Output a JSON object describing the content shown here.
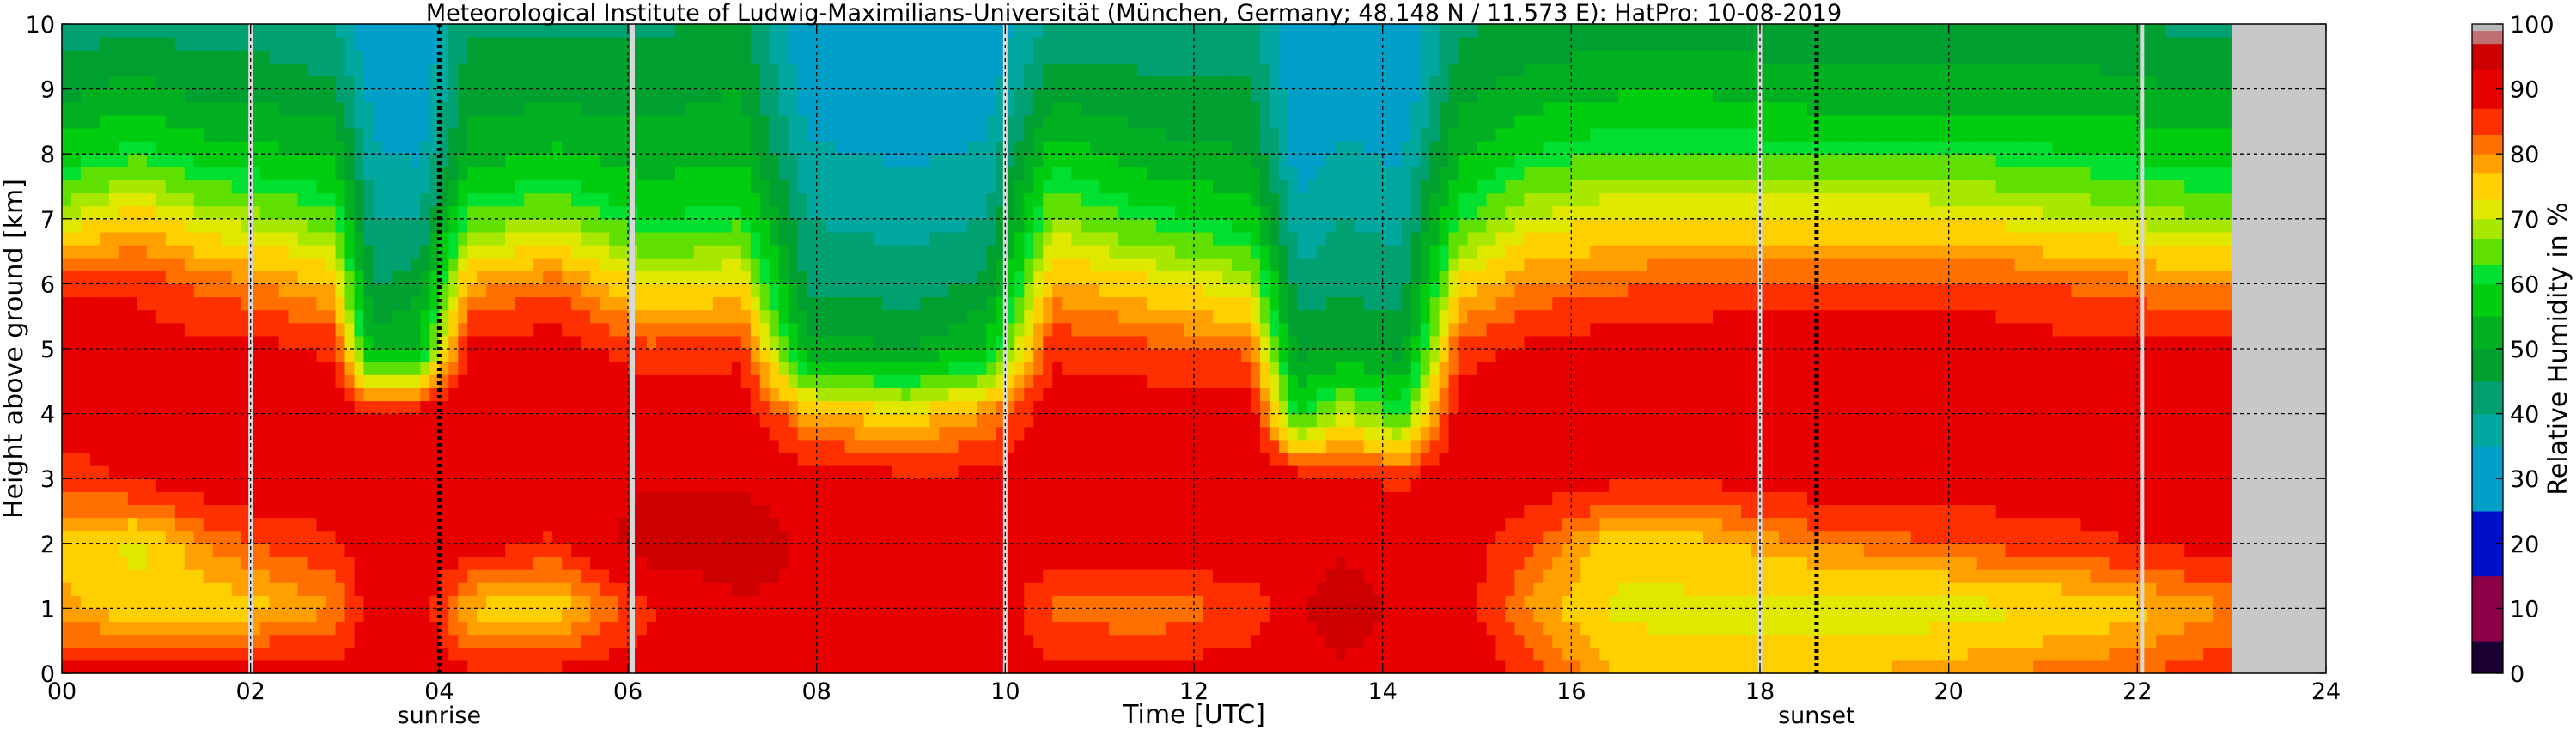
{
  "chart_data": {
    "type": "heatmap",
    "title": "Meteorological Institute of Ludwig-Maximilians-Universität (München, Germany; 48.148 N / 11.573 E):    HatPro: 10-08-2019",
    "xlabel": "Time [UTC]",
    "ylabel": "Height above ground [km]",
    "xlim": [
      0,
      24
    ],
    "ylim": [
      0,
      10
    ],
    "x_ticks": [
      "00",
      "02",
      "04",
      "06",
      "08",
      "10",
      "12",
      "14",
      "16",
      "18",
      "20",
      "22",
      "24"
    ],
    "y_ticks": [
      "0",
      "1",
      "2",
      "3",
      "4",
      "5",
      "6",
      "7",
      "8",
      "9",
      "10"
    ],
    "grid": true,
    "sun_events": [
      {
        "label": "sunrise",
        "time": 4.0
      },
      {
        "label": "sunset",
        "time": 18.6
      }
    ],
    "data_gaps": [
      2.0,
      6.05,
      10.0,
      18.0,
      22.05
    ],
    "no_data_after": 23.0,
    "colorbar": {
      "label": "Relative Humidity in %",
      "ticks": [
        "0",
        "10",
        "20",
        "30",
        "40",
        "50",
        "60",
        "70",
        "80",
        "90",
        "100"
      ],
      "stops": [
        {
          "from": 0,
          "to": 5,
          "color": "#1a0033"
        },
        {
          "from": 5,
          "to": 15,
          "color": "#8b0047"
        },
        {
          "from": 15,
          "to": 25,
          "color": "#0010c8"
        },
        {
          "from": 25,
          "to": 35,
          "color": "#00a0c8"
        },
        {
          "from": 35,
          "to": 40,
          "color": "#00a8a0"
        },
        {
          "from": 40,
          "to": 45,
          "color": "#00a070"
        },
        {
          "from": 45,
          "to": 50,
          "color": "#00a030"
        },
        {
          "from": 50,
          "to": 55,
          "color": "#00b020"
        },
        {
          "from": 55,
          "to": 60,
          "color": "#00cc10"
        },
        {
          "from": 60,
          "to": 63,
          "color": "#00e030"
        },
        {
          "from": 63,
          "to": 67,
          "color": "#60e000"
        },
        {
          "from": 67,
          "to": 70,
          "color": "#a8e800"
        },
        {
          "from": 70,
          "to": 73,
          "color": "#e0e800"
        },
        {
          "from": 73,
          "to": 77,
          "color": "#ffd000"
        },
        {
          "from": 77,
          "to": 80,
          "color": "#ffa000"
        },
        {
          "from": 80,
          "to": 83,
          "color": "#ff7000"
        },
        {
          "from": 83,
          "to": 87,
          "color": "#ff3000"
        },
        {
          "from": 87,
          "to": 93,
          "color": "#e80000"
        },
        {
          "from": 93,
          "to": 97,
          "color": "#cc0000"
        },
        {
          "from": 97,
          "to": 99,
          "color": "#c07070"
        },
        {
          "from": 99,
          "to": 100,
          "color": "#b8b8b8"
        }
      ]
    },
    "profiles": [
      {
        "t": 0.0,
        "rh": [
          88,
          78,
          76,
          84,
          90,
          92,
          85,
          70,
          58,
          48,
          42
        ]
      },
      {
        "t": 0.8,
        "rh": [
          90,
          74,
          72,
          88,
          92,
          90,
          86,
          76,
          62,
          52,
          44
        ]
      },
      {
        "t": 1.5,
        "rh": [
          90,
          74,
          80,
          90,
          92,
          88,
          82,
          70,
          58,
          48,
          42
        ]
      },
      {
        "t": 2.2,
        "rh": [
          90,
          76,
          84,
          92,
          92,
          88,
          80,
          68,
          56,
          48,
          42
        ]
      },
      {
        "t": 2.9,
        "rh": [
          88,
          80,
          86,
          90,
          90,
          86,
          76,
          64,
          54,
          46,
          40
        ]
      },
      {
        "t": 3.3,
        "rh": [
          92,
          90,
          92,
          90,
          88,
          52,
          44,
          40,
          36,
          32,
          30
        ]
      },
      {
        "t": 3.8,
        "rh": [
          92,
          90,
          92,
          90,
          90,
          56,
          48,
          40,
          34,
          30,
          30
        ]
      },
      {
        "t": 4.3,
        "rh": [
          88,
          76,
          90,
          92,
          92,
          88,
          78,
          64,
          52,
          48,
          44
        ]
      },
      {
        "t": 5.2,
        "rh": [
          88,
          74,
          86,
          92,
          92,
          90,
          82,
          68,
          56,
          48,
          44
        ]
      },
      {
        "t": 6.2,
        "rh": [
          90,
          86,
          96,
          92,
          90,
          84,
          72,
          60,
          52,
          48,
          44
        ]
      },
      {
        "t": 7.2,
        "rh": [
          92,
          92,
          97,
          92,
          90,
          86,
          74,
          62,
          54,
          50,
          46
        ]
      },
      {
        "t": 7.9,
        "rh": [
          92,
          92,
          92,
          90,
          78,
          52,
          44,
          40,
          36,
          32,
          30
        ]
      },
      {
        "t": 9.0,
        "rh": [
          92,
          92,
          90,
          88,
          74,
          50,
          42,
          38,
          34,
          30,
          30
        ]
      },
      {
        "t": 9.8,
        "rh": [
          92,
          92,
          90,
          88,
          80,
          56,
          46,
          40,
          36,
          32,
          30
        ]
      },
      {
        "t": 10.5,
        "rh": [
          88,
          82,
          90,
          92,
          90,
          86,
          78,
          68,
          58,
          48,
          42
        ]
      },
      {
        "t": 11.5,
        "rh": [
          88,
          80,
          90,
          92,
          90,
          84,
          74,
          62,
          52,
          46,
          42
        ]
      },
      {
        "t": 12.6,
        "rh": [
          90,
          84,
          92,
          92,
          90,
          82,
          70,
          58,
          50,
          46,
          42
        ]
      },
      {
        "t": 13.1,
        "rh": [
          92,
          92,
          92,
          90,
          60,
          48,
          42,
          36,
          32,
          30,
          30
        ]
      },
      {
        "t": 13.6,
        "rh": [
          92,
          96,
          92,
          88,
          70,
          50,
          44,
          40,
          36,
          32,
          30
        ]
      },
      {
        "t": 14.2,
        "rh": [
          90,
          92,
          90,
          86,
          62,
          48,
          42,
          38,
          34,
          30,
          30
        ]
      },
      {
        "t": 14.8,
        "rh": [
          92,
          90,
          90,
          92,
          90,
          84,
          74,
          62,
          54,
          48,
          44
        ]
      },
      {
        "t": 15.5,
        "rh": [
          86,
          80,
          84,
          90,
          92,
          88,
          80,
          70,
          60,
          52,
          46
        ]
      },
      {
        "t": 16.5,
        "rh": [
          76,
          72,
          74,
          88,
          92,
          90,
          82,
          74,
          64,
          54,
          48
        ]
      },
      {
        "t": 17.5,
        "rh": [
          74,
          72,
          76,
          88,
          92,
          90,
          84,
          74,
          64,
          54,
          48
        ]
      },
      {
        "t": 18.5,
        "rh": [
          76,
          70,
          80,
          90,
          92,
          90,
          84,
          74,
          62,
          52,
          46
        ]
      },
      {
        "t": 19.5,
        "rh": [
          78,
          70,
          82,
          90,
          92,
          90,
          84,
          74,
          62,
          52,
          46
        ]
      },
      {
        "t": 20.5,
        "rh": [
          80,
          72,
          84,
          90,
          92,
          90,
          84,
          72,
          62,
          52,
          46
        ]
      },
      {
        "t": 21.5,
        "rh": [
          82,
          74,
          86,
          90,
          92,
          88,
          82,
          70,
          60,
          52,
          46
        ]
      },
      {
        "t": 22.5,
        "rh": [
          84,
          78,
          88,
          92,
          92,
          88,
          80,
          68,
          58,
          50,
          44
        ]
      },
      {
        "t": 23.0,
        "rh": [
          86,
          80,
          88,
          92,
          92,
          88,
          80,
          68,
          58,
          50,
          44
        ]
      }
    ]
  }
}
